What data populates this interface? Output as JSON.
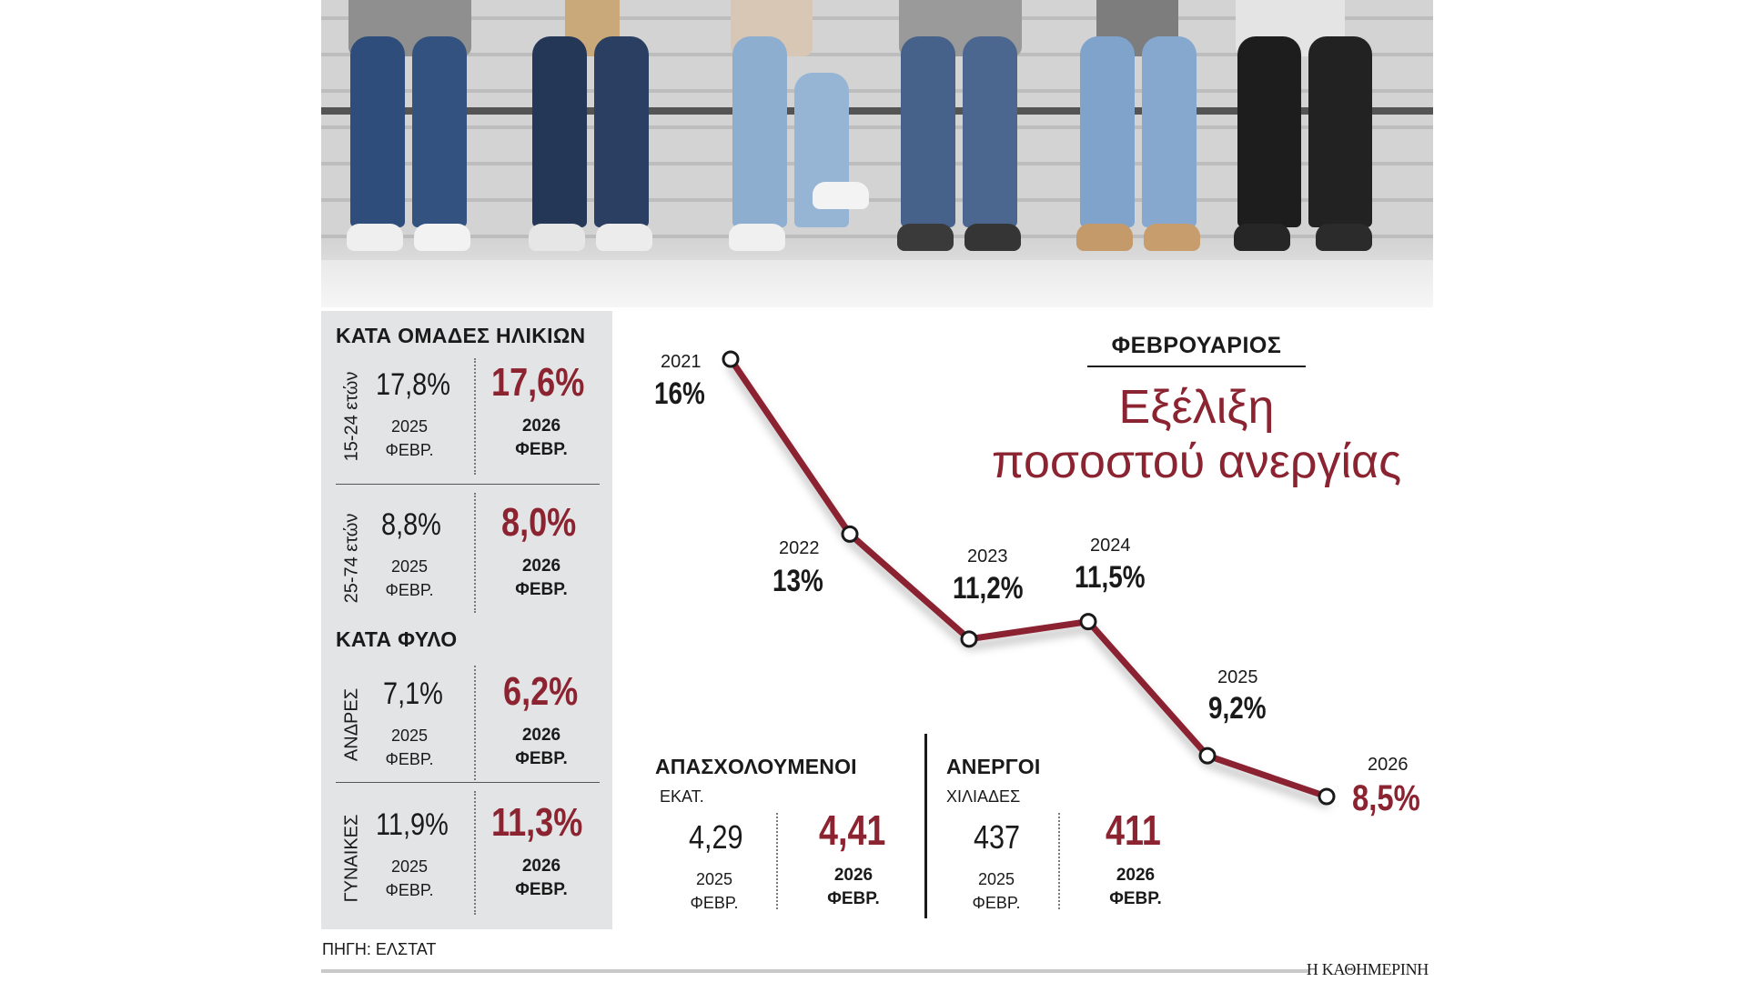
{
  "photo": {
    "icon": "photo-people-sitting-with-devices"
  },
  "panel": {
    "age_title": "ΚΑΤΑ ΟΜΑΔΕΣ ΗΛΙΚΙΩΝ",
    "sex_title": "ΚΑΤΑ ΦΥΛΟ",
    "groups": [
      {
        "label": "15-24 ετών",
        "old": "17,8%",
        "new": "17,6%"
      },
      {
        "label": "25-74 ετών",
        "old": "8,8%",
        "new": "8,0%"
      },
      {
        "label": "ΑΝΔΡΕΣ",
        "old": "7,1%",
        "new": "6,2%"
      },
      {
        "label": "ΓΥΝΑΙΚΕΣ",
        "old": "11,9%",
        "new": "11,3%"
      }
    ],
    "old_year": "2025",
    "new_year": "2026",
    "month": "ΦΕΒΡ."
  },
  "chart": {
    "kicker": "ΦΕΒΡΟΥΑΡΙΟΣ",
    "title_line1": "Εξέλιξη",
    "title_line2": "ποσοστού ανεργίας",
    "line_color": "#8b2331"
  },
  "chart_data": {
    "type": "line",
    "title": "Εξέλιξη ποσοστού ανεργίας",
    "x": [
      "2021",
      "2022",
      "2023",
      "2024",
      "2025",
      "2026"
    ],
    "series": [
      {
        "values": [
          16,
          13,
          11.2,
          11.5,
          9.2,
          8.5
        ]
      }
    ],
    "labels": [
      "16%",
      "13%",
      "11,2%",
      "11,5%",
      "9,2%",
      "8,5%"
    ],
    "grid": false
  },
  "employed": {
    "title": "ΑΠΑΣΧΟΛΟΥΜΕΝΟΙ",
    "unit": "ΕΚΑΤ.",
    "old": "4,29",
    "new": "4,41"
  },
  "unemployed": {
    "title": "ΑΝΕΡΓΟΙ",
    "unit": "ΧΙΛΙΑΔΕΣ",
    "old": "437",
    "new": "411"
  },
  "footer": {
    "source": "ΠΗΓΗ: ΕΛΣΤΑΤ",
    "brand": "Η ΚΑΘΗΜΕΡΙΝΗ"
  }
}
